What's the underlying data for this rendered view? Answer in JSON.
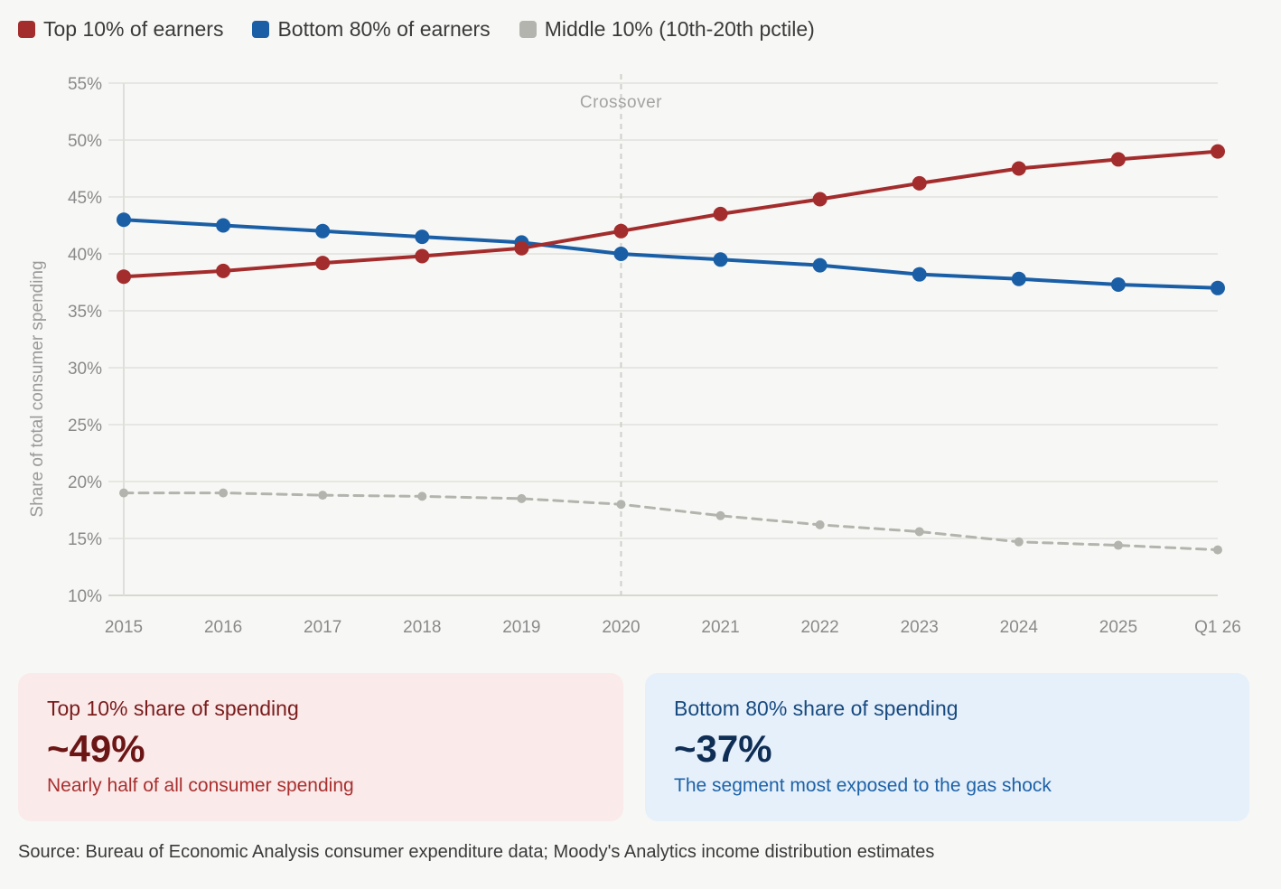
{
  "legend": [
    {
      "label": "Top 10% of earners",
      "color": "#a32d2d"
    },
    {
      "label": "Bottom 80% of earners",
      "color": "#1a5fa6"
    },
    {
      "label": "Middle 10% (10th-20th pctile)",
      "color": "#b4b4ae"
    }
  ],
  "chart_data": {
    "type": "line",
    "title": "",
    "xlabel": "",
    "ylabel": "Share of total consumer spending",
    "categories": [
      "2015",
      "2016",
      "2017",
      "2018",
      "2019",
      "2020",
      "2021",
      "2022",
      "2023",
      "2024",
      "2025",
      "Q1 26"
    ],
    "ylim": [
      10,
      55
    ],
    "yticks": [
      10,
      15,
      20,
      25,
      30,
      35,
      40,
      45,
      50,
      55
    ],
    "ytick_labels": [
      "10%",
      "15%",
      "20%",
      "25%",
      "30%",
      "35%",
      "40%",
      "45%",
      "50%",
      "55%"
    ],
    "grid": true,
    "legend_position": "top-left",
    "series": [
      {
        "name": "Top 10% of earners",
        "color": "#a32d2d",
        "style": "solid",
        "values": [
          38.0,
          38.5,
          39.2,
          39.8,
          40.5,
          42.0,
          43.5,
          44.8,
          46.2,
          47.5,
          48.3,
          49.0
        ]
      },
      {
        "name": "Bottom 80% of earners",
        "color": "#1a5fa6",
        "style": "solid",
        "values": [
          43.0,
          42.5,
          42.0,
          41.5,
          41.0,
          40.0,
          39.5,
          39.0,
          38.2,
          37.8,
          37.3,
          37.0
        ]
      },
      {
        "name": "Middle 10% (10th-20th pctile)",
        "color": "#b4b4ae",
        "style": "dashed",
        "values": [
          19.0,
          19.0,
          18.8,
          18.7,
          18.5,
          18.0,
          17.0,
          16.2,
          15.6,
          14.7,
          14.4,
          14.0
        ]
      }
    ],
    "annotations": [
      {
        "text": "Crossover",
        "x": "2020",
        "type": "vertical-dashed-line"
      }
    ]
  },
  "cards": [
    {
      "title": "Top 10% share of spending",
      "value": "~49%",
      "subtitle": "Nearly half of all consumer spending"
    },
    {
      "title": "Bottom 80% share of spending",
      "value": "~37%",
      "subtitle": "The segment most exposed to the gas shock"
    }
  ],
  "source": "Source: Bureau of Economic Analysis consumer expenditure data; Moody's Analytics income distribution estimates"
}
